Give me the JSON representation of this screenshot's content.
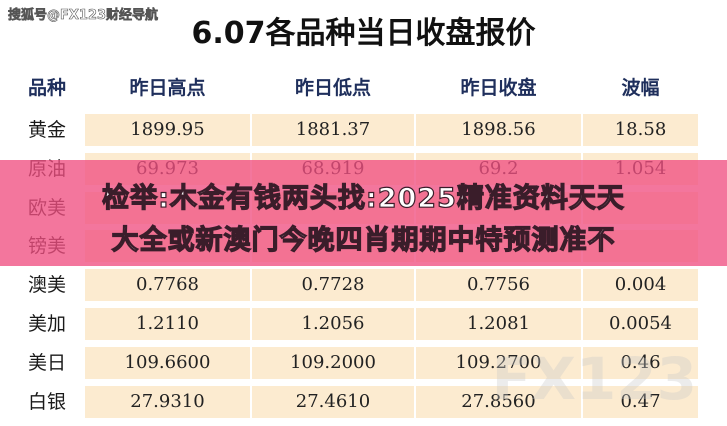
{
  "header": {
    "watermark": "搜狐号@FX123财经导航",
    "title": "6.07各品种当日收盘报价"
  },
  "table": {
    "columns": [
      "品种",
      "昨日高点",
      "昨日低点",
      "昨日收盘",
      "波幅"
    ],
    "rows": [
      [
        "黄金",
        "1899.95",
        "1881.37",
        "1898.56",
        "18.58"
      ],
      [
        "原油",
        "69.973",
        "68.919",
        "69.2",
        "1.054"
      ],
      [
        "欧美"
      ],
      [
        "镑美"
      ],
      [
        "澳美",
        "0.7768",
        "0.7728",
        "0.7756",
        "0.004"
      ],
      [
        "美加",
        "1.2110",
        "1.2056",
        "1.2081",
        "0.0054"
      ],
      [
        "美日",
        "109.6600",
        "109.2000",
        "109.2700",
        "0.46"
      ],
      [
        "白银",
        "27.9310",
        "27.4610",
        "27.8560",
        "0.47"
      ]
    ]
  },
  "overlay": {
    "lines": [
      "检举:木金有钱两头找:2025精准资料天天",
      "大全或新澳门今晚四肖期期中特预测准不"
    ]
  },
  "corner_mark": "FX123"
}
